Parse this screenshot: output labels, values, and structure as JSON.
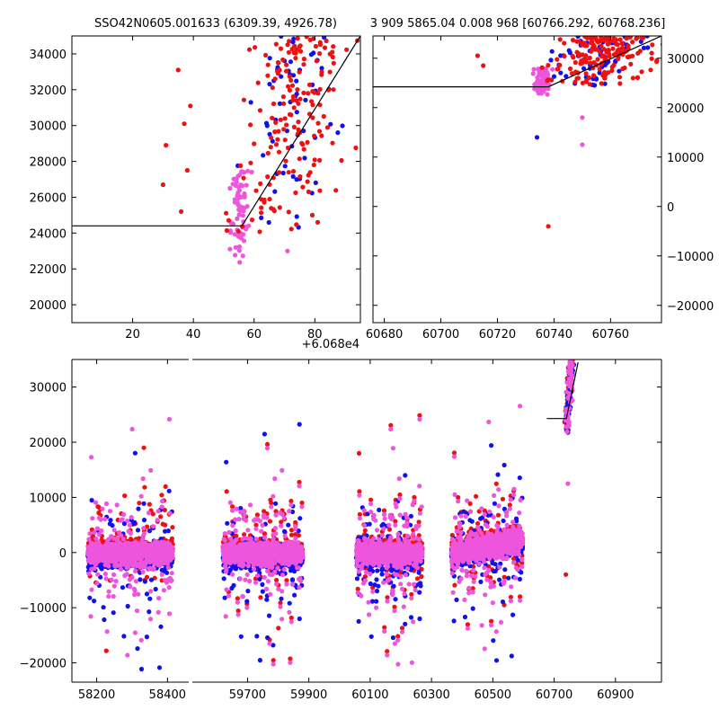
{
  "chart_data": [
    {
      "id": "zoom",
      "type": "scatter",
      "title": "SSO42N0605.001633 (6309.39, 4926.78)",
      "offset_label": "+6.068e4",
      "xlim": [
        0,
        95
      ],
      "ylim": [
        19000,
        35000
      ],
      "xticks": [
        20,
        40,
        60,
        80
      ],
      "yticks": [
        20000,
        22000,
        24000,
        26000,
        28000,
        30000,
        32000,
        34000
      ],
      "model_line": {
        "x": [
          0,
          56,
          95
        ],
        "y": [
          24400,
          24400,
          35000
        ]
      },
      "series": [
        {
          "name": "pink",
          "color": "#ee55dd",
          "x_center": 54,
          "x_spread": 3,
          "y_min": 22300,
          "y_max": 27500,
          "count": 70
        },
        {
          "name": "blue",
          "color": "#1111ee",
          "x_center": 68,
          "x_spread": 14,
          "y_min": 24000,
          "y_max": 35000,
          "count": 60
        },
        {
          "name": "red",
          "color": "#ee1111",
          "x_center": 68,
          "x_spread": 16,
          "y_min": 24000,
          "y_max": 35000,
          "count": 170
        }
      ],
      "outliers": [
        {
          "x": 30,
          "y": 26700,
          "series": "red"
        },
        {
          "x": 31,
          "y": 28900,
          "series": "red"
        },
        {
          "x": 35,
          "y": 33100,
          "series": "red"
        },
        {
          "x": 36,
          "y": 25200,
          "series": "red"
        },
        {
          "x": 37,
          "y": 30100,
          "series": "red"
        },
        {
          "x": 38,
          "y": 27500,
          "series": "red"
        },
        {
          "x": 39,
          "y": 31100,
          "series": "red"
        },
        {
          "x": 71,
          "y": 23000,
          "series": "pink"
        }
      ]
    },
    {
      "id": "night",
      "type": "scatter",
      "title": "3 909 5865.04 0.008 968 [60766.292, 60768.236]",
      "xlim": [
        60676,
        60778
      ],
      "ylim": [
        -23500,
        34500
      ],
      "xticks": [
        60680,
        60700,
        60720,
        60740,
        60760
      ],
      "yticks": [
        -20000,
        -10000,
        0,
        10000,
        20000,
        30000
      ],
      "model_line": {
        "x": [
          60676,
          60738,
          60778
        ],
        "y": [
          24200,
          24200,
          34500
        ]
      },
      "series": [
        {
          "name": "pink",
          "color": "#ee55dd",
          "x_center": 60735,
          "x_spread": 3,
          "y_min": 22500,
          "y_max": 28000,
          "count": 70
        },
        {
          "name": "blue",
          "color": "#1111ee",
          "x_center": 60750,
          "x_spread": 16,
          "y_min": 24500,
          "y_max": 34500,
          "count": 60
        },
        {
          "name": "red",
          "color": "#ee1111",
          "x_center": 60750,
          "x_spread": 17,
          "y_min": 24500,
          "y_max": 34500,
          "count": 170
        }
      ],
      "outliers": [
        {
          "x": 60713,
          "y": 30500,
          "series": "red"
        },
        {
          "x": 60715,
          "y": 28500,
          "series": "red"
        },
        {
          "x": 60750,
          "y": 18000,
          "series": "pink"
        },
        {
          "x": 60750,
          "y": 12500,
          "series": "pink"
        },
        {
          "x": 60738,
          "y": -4000,
          "series": "red"
        },
        {
          "x": 60734,
          "y": 14000,
          "series": "blue"
        }
      ]
    },
    {
      "id": "full",
      "type": "scatter",
      "title": "",
      "x_segments": [
        {
          "xlim": [
            58130,
            58460
          ],
          "xticks": [
            58200,
            58400
          ]
        },
        {
          "xlim": [
            59520,
            61050
          ],
          "xticks": [
            59700,
            59900,
            60100,
            60300,
            60500,
            60700,
            60900
          ]
        }
      ],
      "ylim": [
        -23500,
        35000
      ],
      "yticks": [
        -20000,
        -10000,
        0,
        10000,
        20000,
        30000
      ],
      "seasons": [
        {
          "x_start": 58175,
          "x_end": 58415,
          "slope": 0
        },
        {
          "x_start": 59620,
          "x_end": 59880,
          "slope": 0
        },
        {
          "x_start": 60055,
          "x_end": 60270,
          "slope": 0
        },
        {
          "x_start": 60365,
          "x_end": 60598,
          "slope": 2500
        }
      ],
      "last_night": {
        "x_min": 60725,
        "x_max": 60770,
        "y_min": 22500,
        "y_max": 34500
      },
      "model_line": {
        "x": [
          60676,
          60740,
          60778
        ],
        "y": [
          24300,
          24300,
          34500
        ]
      },
      "series_colors": {
        "red": "#ee1111",
        "blue": "#1111ee",
        "pink": "#ee55dd"
      }
    }
  ]
}
